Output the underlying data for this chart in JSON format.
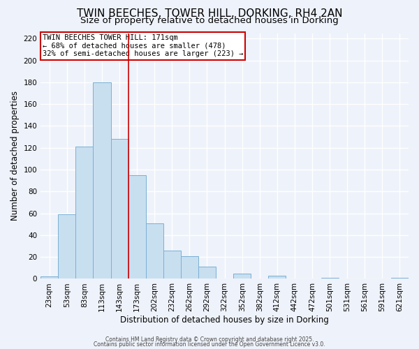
{
  "title": "TWIN BEECHES, TOWER HILL, DORKING, RH4 2AN",
  "subtitle": "Size of property relative to detached houses in Dorking",
  "xlabel": "Distribution of detached houses by size in Dorking",
  "ylabel": "Number of detached properties",
  "footer1": "Contains HM Land Registry data © Crown copyright and database right 2025.",
  "footer2": "Contains public sector information licensed under the Open Government Licence v3.0.",
  "bin_labels": [
    "23sqm",
    "53sqm",
    "83sqm",
    "113sqm",
    "143sqm",
    "173sqm",
    "202sqm",
    "232sqm",
    "262sqm",
    "292sqm",
    "322sqm",
    "352sqm",
    "382sqm",
    "412sqm",
    "442sqm",
    "472sqm",
    "501sqm",
    "531sqm",
    "561sqm",
    "591sqm",
    "621sqm"
  ],
  "bar_values": [
    2,
    59,
    121,
    180,
    128,
    95,
    51,
    26,
    21,
    11,
    0,
    5,
    0,
    3,
    0,
    0,
    1,
    0,
    0,
    0,
    1
  ],
  "bar_color": "#c8dff0",
  "bar_edge_color": "#7ab0d4",
  "reference_line_color": "#cc0000",
  "annotation_title": "TWIN BEECHES TOWER HILL: 171sqm",
  "annotation_line1": "← 68% of detached houses are smaller (478)",
  "annotation_line2": "32% of semi-detached houses are larger (223) →",
  "annotation_box_color": "#cc0000",
  "ylim": [
    0,
    225
  ],
  "yticks": [
    0,
    20,
    40,
    60,
    80,
    100,
    120,
    140,
    160,
    180,
    200,
    220
  ],
  "background_color": "#eef2fa",
  "grid_color": "#ffffff",
  "title_fontsize": 11,
  "subtitle_fontsize": 9.5,
  "axis_label_fontsize": 8.5,
  "tick_fontsize": 7.5,
  "annotation_fontsize": 7.5
}
